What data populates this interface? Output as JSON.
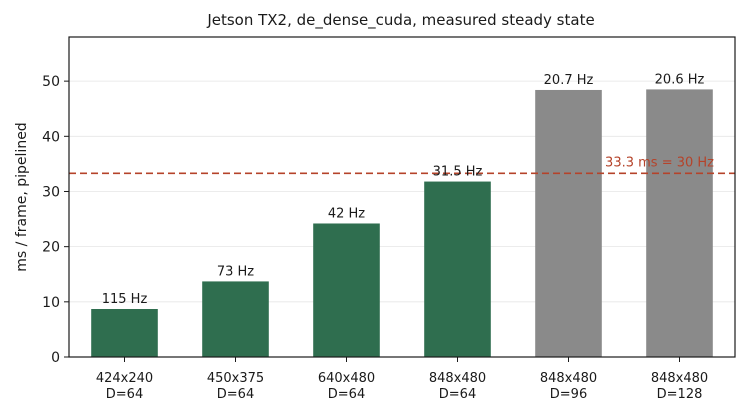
{
  "chart_data": {
    "type": "bar",
    "title": "Jetson TX2, de_dense_cuda, measured steady state",
    "ylabel": "ms / frame, pipelined",
    "xlabel": "",
    "ylim": [
      0,
      58
    ],
    "yticks": [
      0,
      10,
      20,
      30,
      40,
      50
    ],
    "grid": "horizontal",
    "categories": [
      [
        "424x240",
        "D=64"
      ],
      [
        "450x375",
        "D=64"
      ],
      [
        "640x480",
        "D=64"
      ],
      [
        "848x480",
        "D=64"
      ],
      [
        "848x480",
        "D=96"
      ],
      [
        "848x480",
        "D=128"
      ]
    ],
    "values": [
      8.7,
      13.7,
      24.2,
      31.8,
      48.4,
      48.5
    ],
    "data_labels": [
      "115 Hz",
      "73 Hz",
      "42 Hz",
      "31.5 Hz",
      "20.7 Hz",
      "20.6 Hz"
    ],
    "bar_colors": [
      "#2f6e4f",
      "#2f6e4f",
      "#2f6e4f",
      "#2f6e4f",
      "#8a8a8a",
      "#8a8a8a"
    ],
    "reference_line": {
      "value": 33.3,
      "label": "33.3 ms = 30 Hz",
      "color": "#b5432a",
      "style": "dashed"
    }
  }
}
